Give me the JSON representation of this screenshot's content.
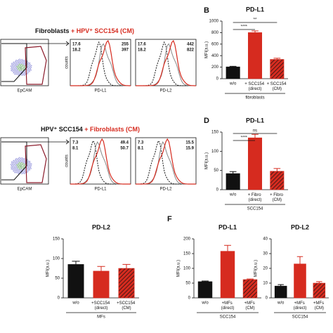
{
  "panel_labels": [
    "B",
    "D",
    "F"
  ],
  "flow_panels": [
    {
      "title": [
        "Fibroblasts",
        " + HPV⁺ SCC154 (CM)"
      ],
      "dot_xlabel": "EpCAM",
      "histograms": [
        {
          "ylabel": "counts",
          "xlabel": "PD-L1",
          "left": [
            "17.6",
            "18.2"
          ],
          "right": [
            "255",
            "397"
          ]
        },
        {
          "xlabel": "PD-L2",
          "left": [
            "17.6",
            "18.2"
          ],
          "right": [
            "442",
            "822"
          ]
        }
      ]
    },
    {
      "title": [
        "HPV⁺ SCC154",
        " + Fibroblasts (CM)"
      ],
      "dot_xlabel": "EpCAM",
      "histograms": [
        {
          "ylabel": "counts",
          "xlabel": "PD-L1",
          "left": [
            "7.3",
            "8.1"
          ],
          "right": [
            "49.4",
            "50.7"
          ]
        },
        {
          "xlabel": "PD-L2",
          "left": [
            "7.3",
            "8.1"
          ],
          "right": [
            "15.5",
            "15.9"
          ]
        }
      ]
    }
  ],
  "chart_data": [
    {
      "type": "bar",
      "title": "PD-L1",
      "ylabel": "MFI(a.u.)",
      "group_label": "fibroblasts",
      "categories": [
        "w/o",
        "+ SCC154 (direct)",
        "+ SCC154 (CM)"
      ],
      "values": [
        205,
        800,
        335
      ],
      "errors": [
        10,
        30,
        20
      ],
      "colors": [
        "#111111",
        "#d62b1f",
        "#d62b1f"
      ],
      "hatched": [
        false,
        false,
        true
      ],
      "ylim": [
        0,
        1000
      ],
      "yticks": [
        0,
        200,
        400,
        600,
        800,
        1000
      ],
      "significance": [
        {
          "label": "****",
          "from": 0,
          "to": 1
        },
        {
          "label": "**",
          "from": 0,
          "to": 2
        }
      ]
    },
    {
      "type": "bar",
      "title": "PD-L1",
      "ylabel": "MFI(a.u.)",
      "group_label": "SCC154",
      "categories": [
        "w/o",
        "+ Fibro (direct)",
        "+ Fibro (CM)"
      ],
      "values": [
        42,
        135,
        48
      ],
      "errors": [
        5,
        9,
        7
      ],
      "colors": [
        "#111111",
        "#d62b1f",
        "#d62b1f"
      ],
      "hatched": [
        false,
        false,
        true
      ],
      "ylim": [
        0,
        150
      ],
      "yticks": [
        0,
        50,
        100,
        150
      ],
      "significance": [
        {
          "label": "****",
          "from": 0,
          "to": 1
        },
        {
          "label": "ns",
          "from": 0,
          "to": 2
        }
      ]
    },
    {
      "type": "bar",
      "title": "PD-L2",
      "ylabel": "MFI(a.u.)",
      "group_label": "MFs",
      "categories": [
        "w/o",
        "+SCC154 (direct)",
        "+SCC154 (CM)"
      ],
      "values": [
        85,
        68,
        75
      ],
      "errors": [
        8,
        12,
        10
      ],
      "colors": [
        "#111111",
        "#d62b1f",
        "#d62b1f"
      ],
      "hatched": [
        false,
        false,
        true
      ],
      "ylim": [
        0,
        150
      ],
      "yticks": [
        0,
        50,
        100,
        150
      ],
      "significance": []
    },
    {
      "type": "bar",
      "title": "PD-L1",
      "ylabel": "MFI(a.u.)",
      "group_label": "SCC154",
      "categories": [
        "w/o",
        "+MFs (direct)",
        "+MFs (CM)"
      ],
      "values": [
        55,
        158,
        62
      ],
      "errors": [
        2,
        20,
        2
      ],
      "colors": [
        "#111111",
        "#d62b1f",
        "#d62b1f"
      ],
      "hatched": [
        false,
        false,
        true
      ],
      "ylim": [
        0,
        200
      ],
      "yticks": [
        0,
        50,
        100,
        150,
        200
      ],
      "significance": []
    },
    {
      "type": "bar",
      "title": "PD-L2",
      "ylabel": "MFI(a.u.)",
      "group_label": "SCC154",
      "categories": [
        "w/o",
        "+MFs (direct)",
        "+MFs (CM)"
      ],
      "values": [
        8,
        23,
        10
      ],
      "errors": [
        1,
        5,
        1
      ],
      "colors": [
        "#111111",
        "#d62b1f",
        "#d62b1f"
      ],
      "hatched": [
        false,
        false,
        true
      ],
      "ylim": [
        0,
        40
      ],
      "yticks": [
        0,
        10,
        20,
        30,
        40
      ],
      "significance": []
    }
  ]
}
